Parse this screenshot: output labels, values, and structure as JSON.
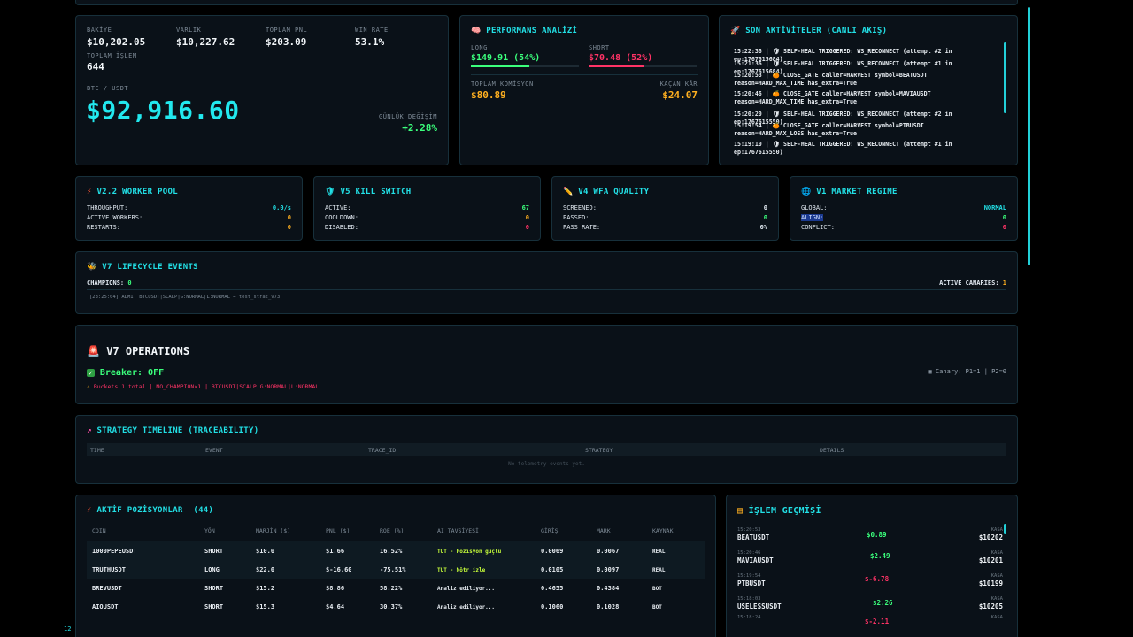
{
  "stats": {
    "items": [
      {
        "label": "BAKİYE",
        "value": "$10,202.05"
      },
      {
        "label": "VARLIK",
        "value": "$10,227.62"
      },
      {
        "label": "TOPLAM PNL",
        "value": "$203.09"
      },
      {
        "label": "WIN RATE",
        "value": "53.1%"
      }
    ],
    "total_trades_label": "TOPLAM İŞLEM",
    "total_trades_value": "644",
    "pair_label": "BTC / USDT",
    "price": "$92,916.60",
    "daily_change_label": "GÜNLÜK DEĞİŞİM",
    "daily_change_value": "+2.28%"
  },
  "performance": {
    "title": "PERFORMANS ANALİZİ",
    "long_label": "LONG",
    "long_value": "$149.91 (54%)",
    "long_fill": 0.54,
    "short_label": "SHORT",
    "short_value": "$70.48 (52%)",
    "short_fill": 0.52,
    "commission_label": "TOPLAM KOMİSYON",
    "commission_value": "$80.89",
    "missed_label": "KAÇAN KÂR",
    "missed_value": "$24.07"
  },
  "activity": {
    "title": "SON AKTİVİTELER (CANLI AKIŞ)",
    "lines": [
      "15:22:36 | 🛡 SELF-HEAL TRIGGERED: WS_RECONNECT (attempt #2 in ep:1767615684)",
      "15:21:36 | 🛡 SELF-HEAL TRIGGERED: WS_RECONNECT (attempt #1 in ep:1767615684)",
      "15:20:53 | 🍊 CLOSE_GATE caller=HARVEST symbol=BEATUSDT reason=HARD_MAX_TIME has_extra=True",
      "15:20:46 | 🍊 CLOSE_GATE caller=HARVEST symbol=MAVIAUSDT reason=HARD_MAX_TIME has_extra=True",
      "15:20:20 | 🛡 SELF-HEAL TRIGGERED: WS_RECONNECT (attempt #2 in ep:1767615550)",
      "15:19:54 | 🍊 CLOSE_GATE caller=HARVEST symbol=PTBUSDT reason=HARD_MAX_LOSS has_extra=True",
      "15:19:10 | 🛡 SELF-HEAL TRIGGERED: WS_RECONNECT (attempt #1 in ep:1767615550)"
    ]
  },
  "worker_pool": {
    "title": "V2.2 WORKER POOL",
    "rows": [
      {
        "k": "THROUGHPUT:",
        "v": "0.0/s"
      },
      {
        "k": "ACTIVE WORKERS:",
        "v": "0"
      },
      {
        "k": "RESTARTS:",
        "v": "0"
      }
    ]
  },
  "kill_switch": {
    "title": "V5 KILL SWITCH",
    "rows": [
      {
        "k": "ACTIVE:",
        "v": "67"
      },
      {
        "k": "COOLDOWN:",
        "v": "0"
      },
      {
        "k": "DISABLED:",
        "v": "0"
      }
    ]
  },
  "wfa_quality": {
    "title": "V4 WFA QUALITY",
    "rows": [
      {
        "k": "SCREENED:",
        "v": "0"
      },
      {
        "k": "PASSED:",
        "v": "0"
      },
      {
        "k": "PASS RATE:",
        "v": "0%"
      }
    ]
  },
  "market_regime": {
    "title": "V1 MARKET REGIME",
    "rows": [
      {
        "k": "GLOBAL:",
        "v": "NORMAL"
      },
      {
        "k": "ALIGN:",
        "v": "0"
      },
      {
        "k": "CONFLICT:",
        "v": "0"
      }
    ]
  },
  "lifecycle": {
    "title": "V7 LIFECYCLE EVENTS",
    "champions_label": "CHAMPIONS:",
    "champions_value": "0",
    "canaries_label": "ACTIVE CANARIES:",
    "canaries_value": "1",
    "event": "[23:25:04] ADMIT BTCUSDT|SCALP|G:NORMAL|L:NORMAL → test_strat_v73"
  },
  "operations": {
    "title": "V7 OPERATIONS",
    "breaker": "Breaker: OFF",
    "warning": "Buckets 1 total | NO_CHAMPION×1 | BTCUSDT|SCALP|G:NORMAL|L:NORMAL",
    "canary": "Canary: P1=1 | P2=0"
  },
  "timeline": {
    "title": "STRATEGY TIMELINE (TRACEABILITY)",
    "headers": [
      "TIME",
      "EVENT",
      "TRACE_ID",
      "STRATEGY",
      "DETAILS"
    ],
    "empty": "No telemetry events yet."
  },
  "positions": {
    "title": "AKTİF POZİSYONLAR",
    "count": "(44)",
    "headers": [
      "COIN",
      "YÖN",
      "MARJİN ($)",
      "PNL ($)",
      "ROE (%)",
      "AI TAVSİYESİ",
      "GİRİŞ",
      "MARK",
      "KAYNAK"
    ],
    "rows": [
      {
        "coin": "1000PEPEUSDT",
        "dir": "SHORT",
        "margin": "$10.0",
        "pnl": "$1.66",
        "roe": "16.52%",
        "ai": "TUT - Pozisyon güçlü",
        "entry": "0.0069",
        "mark": "0.0067",
        "src": "REAL"
      },
      {
        "coin": "TRUTHUSDT",
        "dir": "LONG",
        "margin": "$22.0",
        "pnl": "$-16.60",
        "roe": "-75.51%",
        "ai": "TUT - Nötr izle",
        "entry": "0.0105",
        "mark": "0.0097",
        "src": "REAL"
      },
      {
        "coin": "BREVUSDT",
        "dir": "SHORT",
        "margin": "$15.2",
        "pnl": "$8.86",
        "roe": "58.22%",
        "ai": "Analiz ediliyor...",
        "entry": "0.4655",
        "mark": "0.4384",
        "src": "BOT"
      },
      {
        "coin": "AIOUSDT",
        "dir": "SHORT",
        "margin": "$15.3",
        "pnl": "$4.64",
        "roe": "30.37%",
        "ai": "Analiz ediliyor...",
        "entry": "0.1060",
        "mark": "0.1028",
        "src": "BOT"
      }
    ]
  },
  "history": {
    "title": "İŞLEM GEÇMİŞİ",
    "rows": [
      {
        "time": "15:20:53",
        "symbol": "BEATUSDT",
        "pnl": "$0.89",
        "balance_label": "KASA",
        "balance": "$10202"
      },
      {
        "time": "15:20:46",
        "symbol": "MAVIAUSDT",
        "pnl": "$2.49",
        "balance_label": "KASA",
        "balance": "$10201"
      },
      {
        "time": "15:19:54",
        "symbol": "PTBUSDT",
        "pnl": "$-6.78",
        "balance_label": "KASA",
        "balance": "$10199"
      },
      {
        "time": "15:18:03",
        "symbol": "USELESSUSDT",
        "pnl": "$2.26",
        "balance_label": "KASA",
        "balance": "$10205"
      },
      {
        "time": "15:18:24",
        "symbol": "",
        "pnl": "$-2.11",
        "balance_label": "KASA",
        "balance": ""
      }
    ]
  },
  "footer": {
    "counter": "12"
  },
  "colors": {
    "accent": "#22e0e6",
    "positive": "#3bff7c",
    "negative": "#ff3366",
    "warning": "#ffb020",
    "panel": "#0a1118",
    "border": "#17303b"
  }
}
